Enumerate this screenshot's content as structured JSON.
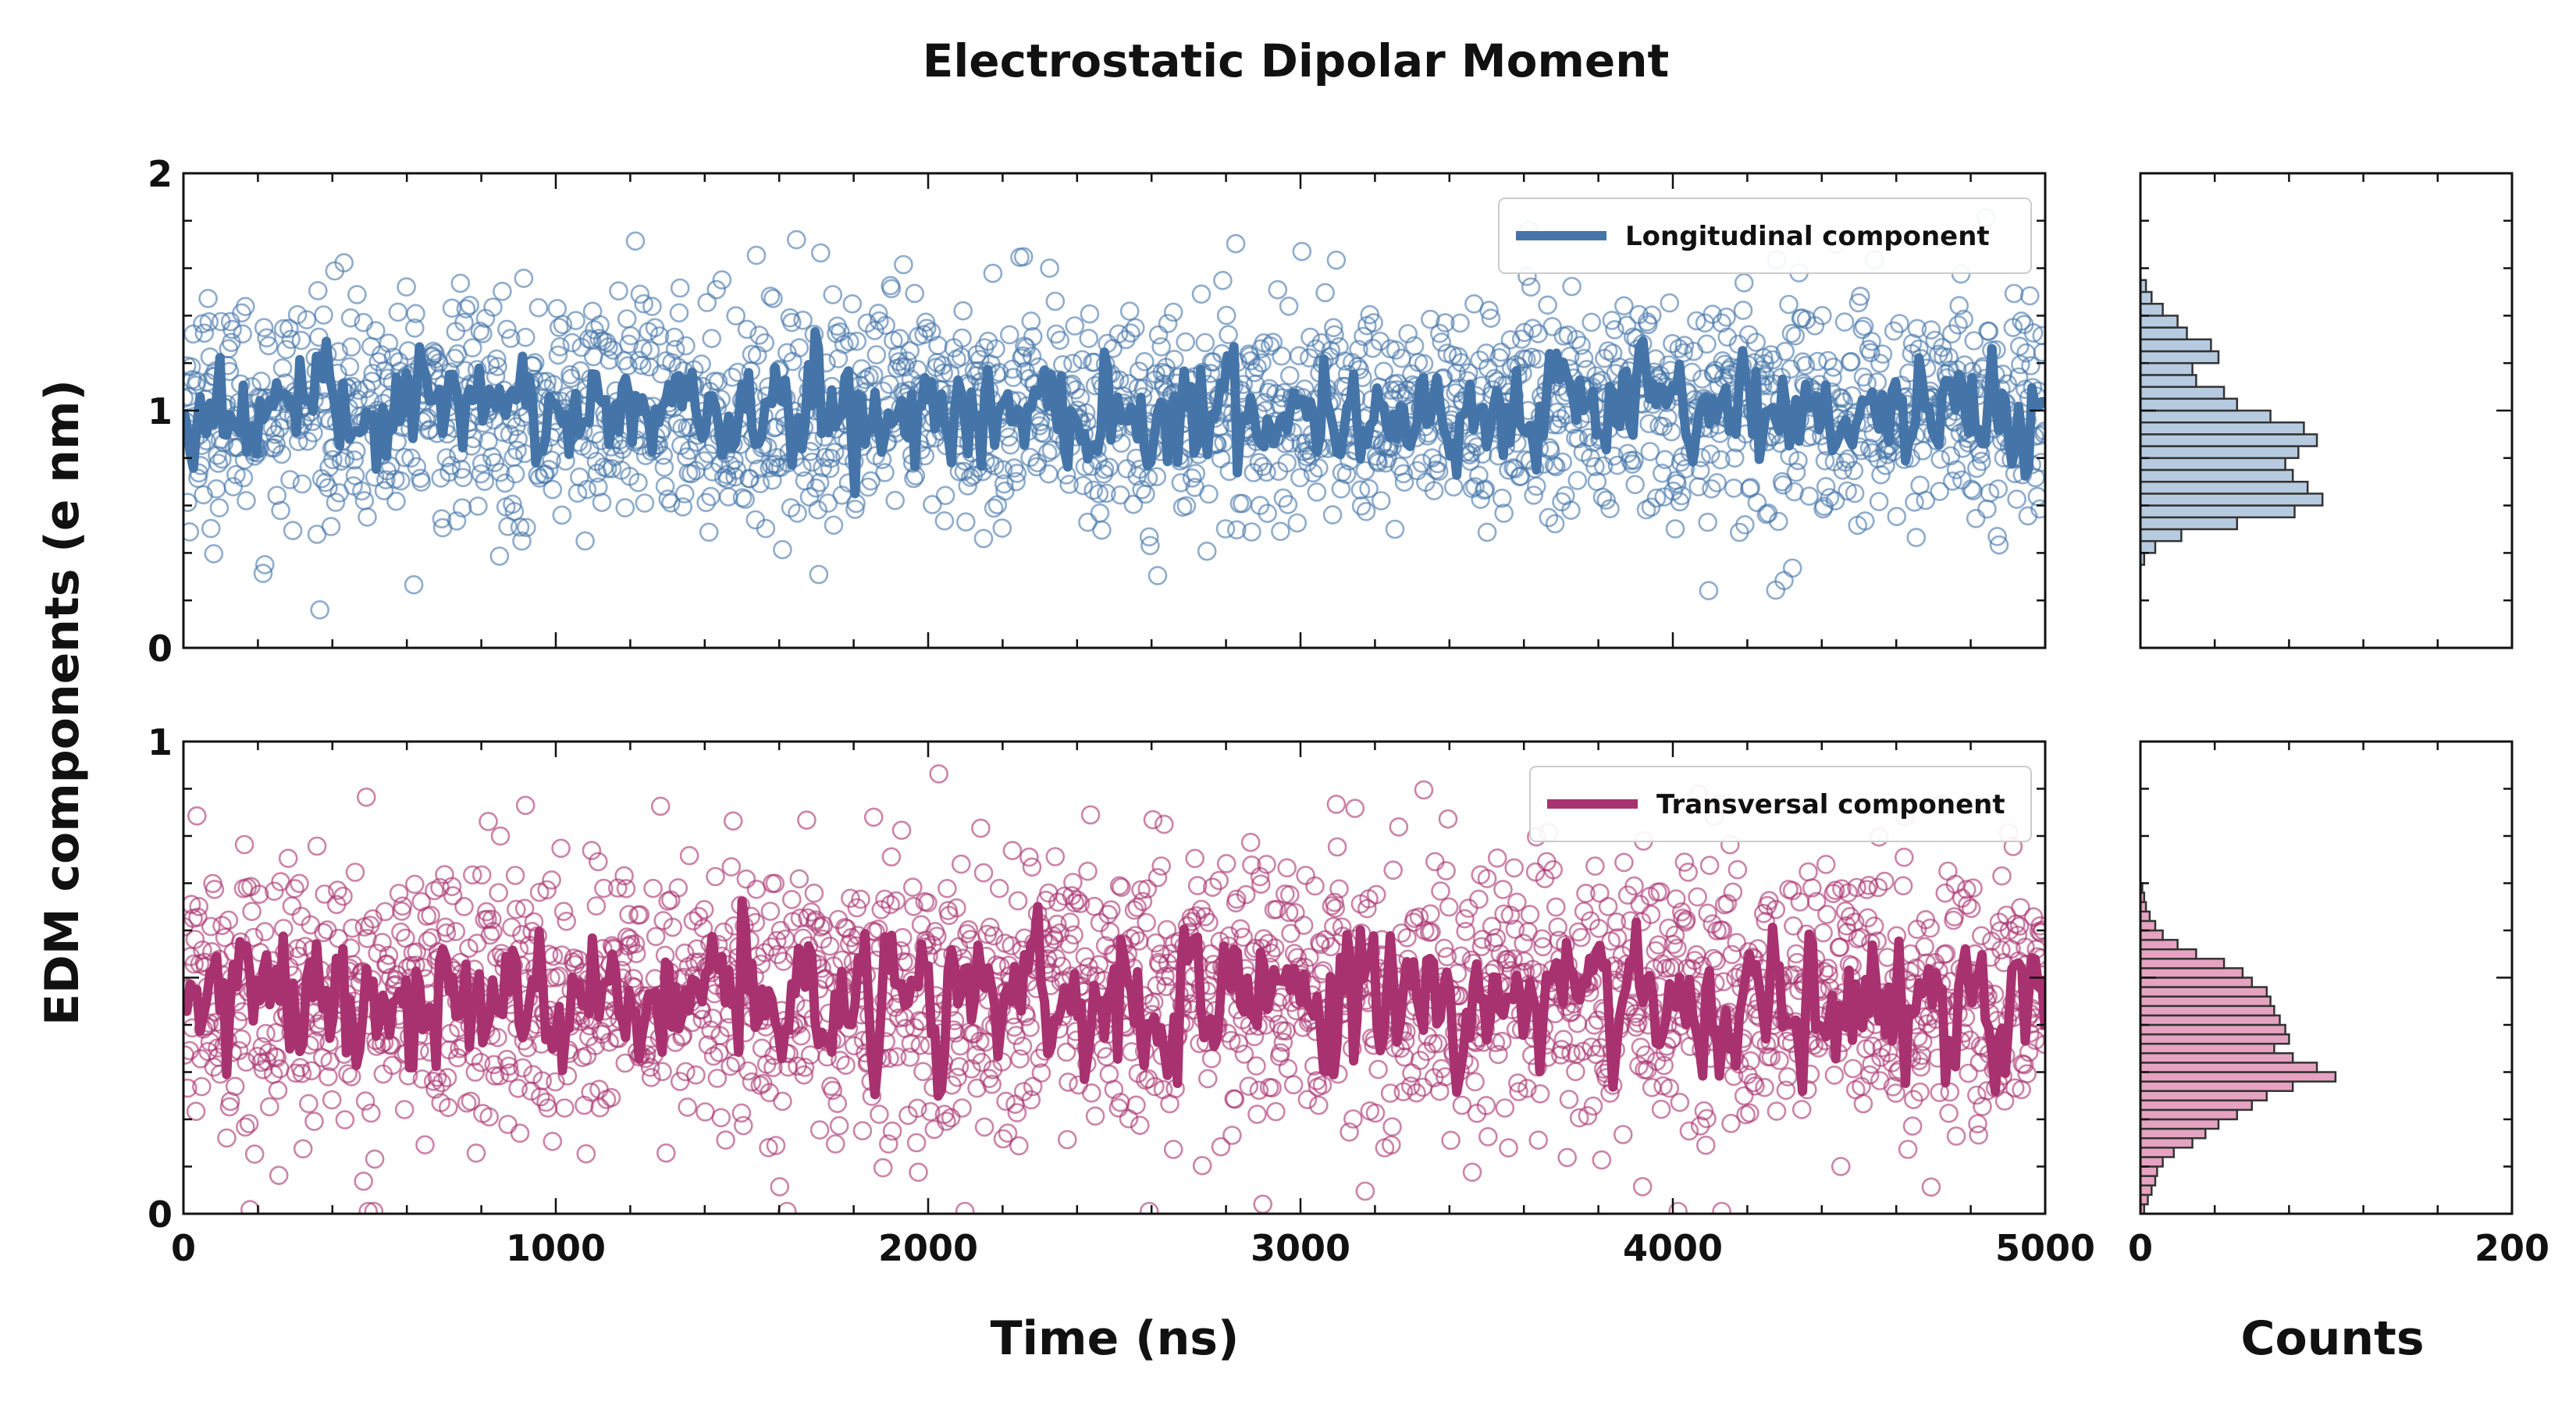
{
  "chart_data": {
    "type": "scatter",
    "title": "Electrostatic Dipolar Moment",
    "xlabel": "Time (ns)",
    "ylabel": "EDM components (e nm)",
    "hist_xlabel": "Counts",
    "xlim": [
      0,
      5000
    ],
    "x_ticks": [
      "0",
      "1000",
      "2000",
      "3000",
      "4000",
      "5000"
    ],
    "hist_xlim": [
      0,
      200
    ],
    "hist_ticks": [
      "0",
      "200"
    ],
    "panels": [
      {
        "name": "longitudinal",
        "legend": "Longitudinal component",
        "color": "#4575a8",
        "fill": "#b7cbe0",
        "ylim": [
          0,
          2
        ],
        "y_ticks": [
          "0",
          "1",
          "2"
        ],
        "mean": 1.0,
        "scatter_std": 0.24,
        "line_std": 0.11,
        "points": 2000,
        "histogram": {
          "bin_start": 0.35,
          "bin_width": 0.05,
          "counts": [
            2,
            8,
            22,
            52,
            83,
            98,
            90,
            82,
            78,
            85,
            95,
            88,
            70,
            52,
            45,
            30,
            28,
            42,
            38,
            25,
            20,
            12,
            6,
            3
          ]
        }
      },
      {
        "name": "transversal",
        "legend": "Transversal component",
        "color": "#a83270",
        "fill": "#e6a3c1",
        "ylim": [
          0,
          1
        ],
        "y_ticks": [
          "0",
          "1"
        ],
        "mean": 0.46,
        "scatter_std": 0.15,
        "line_std": 0.07,
        "points": 2000,
        "histogram": {
          "bin_start": 0.0,
          "bin_width": 0.02,
          "counts": [
            2,
            4,
            6,
            8,
            9,
            12,
            18,
            28,
            35,
            42,
            52,
            60,
            68,
            82,
            105,
            95,
            82,
            72,
            80,
            78,
            75,
            72,
            70,
            68,
            60,
            55,
            45,
            30,
            20,
            12,
            8,
            5,
            3,
            2,
            1
          ]
        }
      }
    ]
  }
}
